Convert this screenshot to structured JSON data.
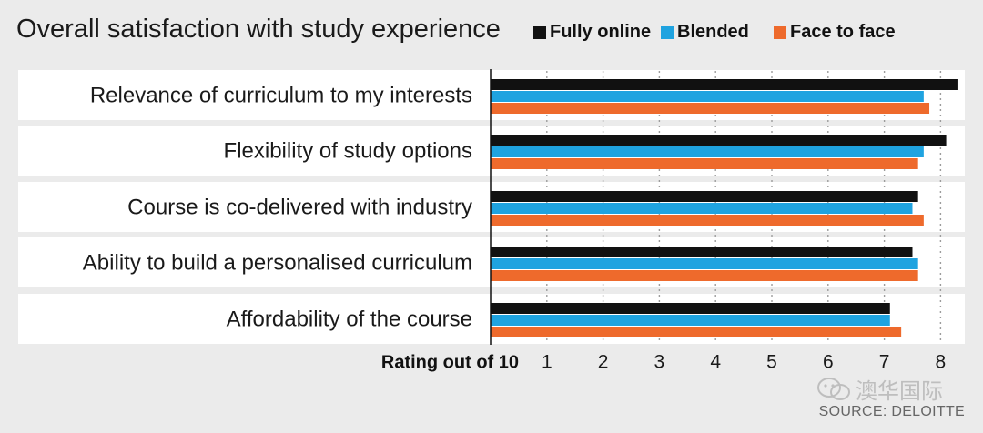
{
  "title": "Overall satisfaction with study experience",
  "source": "SOURCE: DELOITTE",
  "watermark": "澳华国际",
  "colors": {
    "background": "#ebebeb",
    "row_band": "#ffffff",
    "fully_online": "#111111",
    "blended": "#1fa3e0",
    "face_to_face": "#ee6a2c"
  },
  "chart_data": {
    "type": "bar",
    "orientation": "horizontal",
    "title": "Overall satisfaction with study experience",
    "xlabel": "Rating out of 10",
    "ylabel": "",
    "xlim": [
      0,
      8.3
    ],
    "x_ticks": [
      1,
      2,
      3,
      4,
      5,
      6,
      7,
      8
    ],
    "grid": "dotted vertical",
    "legend_position": "top-right",
    "categories": [
      "Relevance of curriculum to my interests",
      "Flexibility of study options",
      "Course is co-delivered with industry",
      "Ability to build a personalised curriculum",
      "Affordability of the course"
    ],
    "series": [
      {
        "name": "Fully online",
        "color": "#111111",
        "values": [
          8.3,
          8.1,
          7.6,
          7.5,
          7.1
        ]
      },
      {
        "name": "Blended",
        "color": "#1fa3e0",
        "values": [
          7.7,
          7.7,
          7.5,
          7.6,
          7.1
        ]
      },
      {
        "name": "Face to face",
        "color": "#ee6a2c",
        "values": [
          7.8,
          7.6,
          7.7,
          7.6,
          7.3
        ]
      }
    ],
    "source": "SOURCE: DELOITTE"
  }
}
